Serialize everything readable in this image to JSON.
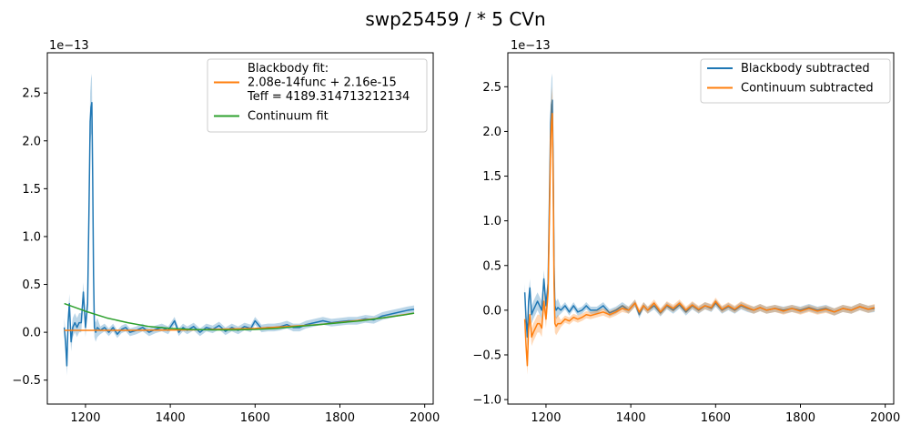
{
  "figure": {
    "suptitle": "swp25459 / *   5 CVn"
  },
  "colors": {
    "blue": "#1f77b4",
    "orange": "#ff7f0e",
    "green": "#2ca02c"
  },
  "chart_data": [
    {
      "type": "line",
      "title": "",
      "xlabel": "",
      "ylabel": "",
      "y_offset_label": "1e−13",
      "xlim": [
        1110,
        2020
      ],
      "ylim": [
        -0.75,
        2.92
      ],
      "xticks": [
        1200,
        1400,
        1600,
        1800,
        2000
      ],
      "yticks": [
        -0.5,
        0.0,
        0.5,
        1.0,
        1.5,
        2.0,
        2.5
      ],
      "legend_position": "upper right",
      "legend": [
        {
          "label": "Blackbody fit:\n2.08e-14func + 2.16e-15\nTeff = 4189.314713212134",
          "color": "#ff7f0e",
          "series": "blackbody_fit"
        },
        {
          "label": "Continuum fit",
          "color": "#2ca02c",
          "series": "continuum_fit"
        }
      ],
      "series": [
        {
          "key": "spectrum",
          "color": "#1f77b4",
          "band": true,
          "x": [
            1150,
            1153,
            1156,
            1159,
            1162,
            1166,
            1170,
            1175,
            1180,
            1185,
            1190,
            1195,
            1200,
            1205,
            1208,
            1211,
            1213,
            1215,
            1217,
            1219,
            1221,
            1224,
            1228,
            1235,
            1245,
            1255,
            1265,
            1275,
            1285,
            1295,
            1305,
            1320,
            1335,
            1350,
            1365,
            1380,
            1395,
            1410,
            1420,
            1430,
            1440,
            1455,
            1470,
            1485,
            1500,
            1515,
            1530,
            1545,
            1560,
            1575,
            1590,
            1600,
            1615,
            1630,
            1645,
            1660,
            1675,
            1690,
            1705,
            1720,
            1740,
            1760,
            1780,
            1800,
            1820,
            1840,
            1860,
            1880,
            1900,
            1920,
            1940,
            1960,
            1975
          ],
          "y": [
            0.05,
            -0.1,
            -0.35,
            0.1,
            0.3,
            -0.1,
            0.05,
            0.1,
            0.05,
            0.1,
            0.1,
            0.42,
            0.05,
            0.3,
            1.2,
            2.2,
            2.35,
            2.4,
            1.6,
            0.6,
            0.05,
            0.0,
            0.05,
            0.02,
            0.05,
            0.0,
            0.05,
            -0.02,
            0.03,
            0.05,
            0.0,
            0.02,
            0.05,
            0.0,
            0.03,
            0.05,
            0.02,
            0.12,
            0.0,
            0.05,
            0.02,
            0.06,
            0.0,
            0.05,
            0.03,
            0.07,
            0.01,
            0.05,
            0.02,
            0.06,
            0.04,
            0.12,
            0.04,
            0.05,
            0.05,
            0.06,
            0.08,
            0.05,
            0.05,
            0.08,
            0.1,
            0.12,
            0.1,
            0.11,
            0.12,
            0.12,
            0.14,
            0.13,
            0.17,
            0.19,
            0.21,
            0.23,
            0.24
          ]
        },
        {
          "key": "blackbody_fit",
          "name": "Blackbody fit:\n2.08e-14func + 2.16e-15\nTeff = 4189.314713212134",
          "color": "#ff7f0e",
          "x": [
            1150,
            1300,
            1450,
            1600,
            1750,
            1900,
            1975
          ],
          "y": [
            0.02,
            0.02,
            0.025,
            0.04,
            0.08,
            0.15,
            0.2
          ]
        },
        {
          "key": "continuum_fit",
          "name": "Continuum fit",
          "color": "#2ca02c",
          "x": [
            1150,
            1200,
            1250,
            1300,
            1350,
            1400,
            1450,
            1500,
            1550,
            1600,
            1650,
            1700,
            1750,
            1800,
            1850,
            1900,
            1950,
            1975
          ],
          "y": [
            0.3,
            0.22,
            0.15,
            0.1,
            0.06,
            0.04,
            0.03,
            0.025,
            0.025,
            0.03,
            0.04,
            0.06,
            0.08,
            0.1,
            0.12,
            0.15,
            0.18,
            0.2
          ]
        }
      ]
    },
    {
      "type": "line",
      "title": "",
      "xlabel": "",
      "ylabel": "",
      "y_offset_label": "1e−13",
      "xlim": [
        1110,
        2020
      ],
      "ylim": [
        -1.05,
        2.88
      ],
      "xticks": [
        1200,
        1400,
        1600,
        1800,
        2000
      ],
      "yticks": [
        -1.0,
        -0.5,
        0.0,
        0.5,
        1.0,
        1.5,
        2.0,
        2.5
      ],
      "legend_position": "upper right",
      "legend": [
        {
          "label": "Blackbody subtracted",
          "color": "#1f77b4",
          "series": "bb_sub"
        },
        {
          "label": "Continuum subtracted",
          "color": "#ff7f0e",
          "series": "cont_sub"
        }
      ],
      "series": [
        {
          "key": "bb_sub",
          "name": "Blackbody subtracted",
          "color": "#1f77b4",
          "band": true,
          "x": [
            1150,
            1153,
            1156,
            1159,
            1162,
            1166,
            1170,
            1175,
            1180,
            1185,
            1190,
            1195,
            1200,
            1205,
            1208,
            1211,
            1213,
            1215,
            1217,
            1219,
            1221,
            1224,
            1228,
            1235,
            1245,
            1255,
            1265,
            1275,
            1285,
            1295,
            1305,
            1320,
            1335,
            1350,
            1365,
            1380,
            1395,
            1410,
            1420,
            1430,
            1440,
            1455,
            1470,
            1485,
            1500,
            1515,
            1530,
            1545,
            1560,
            1575,
            1590,
            1600,
            1615,
            1630,
            1645,
            1660,
            1675,
            1690,
            1705,
            1720,
            1740,
            1760,
            1780,
            1800,
            1820,
            1840,
            1860,
            1880,
            1900,
            1920,
            1940,
            1960,
            1975
          ],
          "y": [
            0.2,
            -0.1,
            -0.3,
            0.1,
            0.25,
            -0.05,
            0.0,
            0.05,
            0.1,
            0.05,
            0.0,
            0.35,
            0.05,
            0.3,
            1.2,
            2.1,
            2.3,
            2.35,
            1.6,
            0.5,
            0.05,
            0.0,
            0.03,
            0.0,
            0.05,
            -0.02,
            0.05,
            -0.02,
            0.0,
            0.05,
            0.0,
            0.0,
            0.05,
            -0.03,
            0.0,
            0.05,
            0.0,
            0.08,
            -0.05,
            0.05,
            0.0,
            0.05,
            -0.03,
            0.05,
            0.0,
            0.06,
            -0.02,
            0.05,
            0.0,
            0.05,
            0.02,
            0.08,
            0.0,
            0.04,
            0.0,
            0.05,
            0.02,
            0.0,
            0.03,
            0.0,
            0.02,
            0.0,
            0.02,
            0.0,
            0.03,
            0.0,
            0.02,
            -0.02,
            0.02,
            0.0,
            0.04,
            0.01,
            0.02
          ]
        },
        {
          "key": "cont_sub",
          "name": "Continuum subtracted",
          "color": "#ff7f0e",
          "band": true,
          "x": [
            1150,
            1153,
            1156,
            1159,
            1162,
            1166,
            1170,
            1175,
            1180,
            1185,
            1190,
            1195,
            1200,
            1205,
            1208,
            1211,
            1213,
            1215,
            1217,
            1219,
            1221,
            1224,
            1228,
            1235,
            1245,
            1255,
            1265,
            1275,
            1285,
            1295,
            1305,
            1320,
            1335,
            1350,
            1365,
            1380,
            1395,
            1410,
            1420,
            1430,
            1440,
            1455,
            1470,
            1485,
            1500,
            1515,
            1530,
            1545,
            1560,
            1575,
            1590,
            1600,
            1615,
            1630,
            1645,
            1660,
            1675,
            1690,
            1705,
            1720,
            1740,
            1760,
            1780,
            1800,
            1820,
            1840,
            1860,
            1880,
            1900,
            1920,
            1940,
            1960,
            1975
          ],
          "y": [
            -0.1,
            -0.4,
            -0.62,
            -0.2,
            -0.05,
            -0.3,
            -0.25,
            -0.2,
            -0.15,
            -0.15,
            -0.2,
            0.1,
            -0.1,
            0.2,
            1.0,
            1.9,
            2.1,
            2.2,
            1.4,
            0.3,
            -0.15,
            -0.18,
            -0.15,
            -0.15,
            -0.1,
            -0.12,
            -0.08,
            -0.1,
            -0.08,
            -0.05,
            -0.06,
            -0.04,
            -0.02,
            -0.05,
            -0.02,
            0.02,
            0.0,
            0.08,
            -0.02,
            0.05,
            0.0,
            0.08,
            -0.02,
            0.06,
            0.02,
            0.08,
            0.0,
            0.06,
            0.01,
            0.05,
            0.03,
            0.1,
            0.01,
            0.05,
            0.01,
            0.06,
            0.03,
            0.0,
            0.03,
            0.0,
            0.02,
            -0.01,
            0.02,
            -0.01,
            0.02,
            -0.01,
            0.01,
            -0.02,
            0.02,
            0.0,
            0.04,
            0.01,
            0.03
          ]
        }
      ]
    }
  ]
}
